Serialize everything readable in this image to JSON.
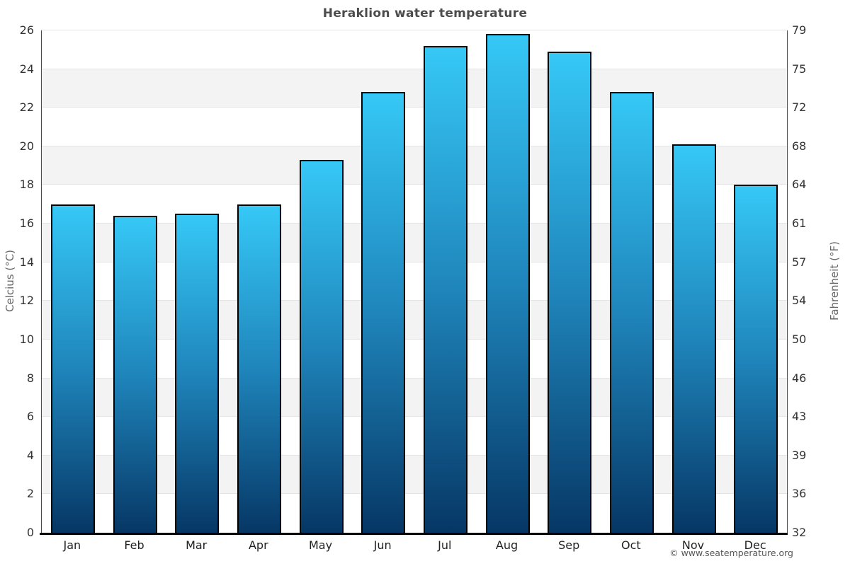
{
  "title": "Heraklion water temperature",
  "footer": "© www.seatemperature.org",
  "axes": {
    "left_title": "Celcius (°C)",
    "right_title": "Fahrenheit (°F)"
  },
  "chart_data": {
    "type": "bar",
    "title": "Heraklion water temperature",
    "categories": [
      "Jan",
      "Feb",
      "Mar",
      "Apr",
      "May",
      "Jun",
      "Jul",
      "Aug",
      "Sep",
      "Oct",
      "Nov",
      "Dec"
    ],
    "values": [
      17.0,
      16.4,
      16.5,
      17.0,
      19.3,
      22.8,
      25.2,
      25.8,
      24.9,
      22.8,
      20.1,
      18.0
    ],
    "series_name": "Water temperature",
    "xlabel": "",
    "ylabel_left": "Celcius (°C)",
    "ylabel_right": "Fahrenheit (°F)",
    "ylim": [
      0,
      26
    ],
    "ytick_step": 2,
    "yticks_left": [
      "0",
      "2",
      "4",
      "6",
      "8",
      "10",
      "12",
      "14",
      "16",
      "18",
      "20",
      "22",
      "24",
      "26"
    ],
    "yticks_right": [
      "32",
      "36",
      "39",
      "43",
      "46",
      "50",
      "54",
      "57",
      "61",
      "64",
      "68",
      "72",
      "75",
      "79"
    ],
    "grid": "horizontal gridlines every 2°C with alternating light-gray bands",
    "legend": "none",
    "colors": {
      "bar_gradient_top": "#36c8f6",
      "bar_gradient_mid": "#1f85bb",
      "bar_gradient_bottom": "#063765",
      "bar_border": "#000000",
      "band_fill": "#f3f3f3",
      "gridline": "#e4e4e4",
      "axis_line": "#4a4a4a",
      "baseline": "#000000",
      "title_text": "#4c4c4c",
      "tick_text": "#333333",
      "axis_title_text": "#666666",
      "footer_text": "#555555"
    }
  }
}
